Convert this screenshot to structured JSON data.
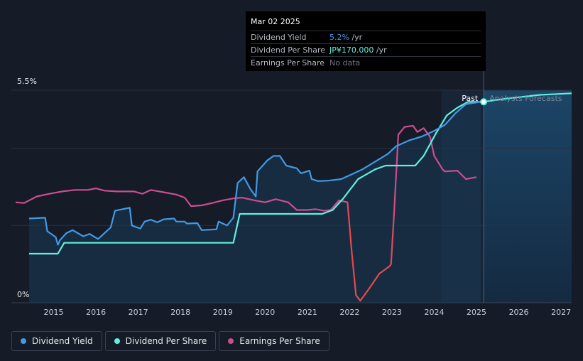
{
  "tooltip": {
    "date": "Mar 02 2025",
    "rows": [
      {
        "label": "Dividend Yield",
        "value": "5.2%",
        "suffix": " /yr"
      },
      {
        "label": "Dividend Per Share",
        "value": "JP¥170.000",
        "suffix": " /yr"
      },
      {
        "label": "Earnings Per Share",
        "value": "No data",
        "suffix": ""
      }
    ]
  },
  "legend": [
    {
      "label": "Dividend Yield",
      "color": "#3f9ae8"
    },
    {
      "label": "Dividend Per Share",
      "color": "#5ff0e0"
    },
    {
      "label": "Earnings Per Share",
      "color": "#cc4d8f"
    }
  ],
  "chart_data": {
    "type": "line",
    "y_tick_labels": [
      "5.5%",
      "0%"
    ],
    "ylim": [
      0,
      5.5
    ],
    "x_ticks": [
      "2015",
      "2016",
      "2017",
      "2018",
      "2019",
      "2020",
      "2021",
      "2022",
      "2023",
      "2024",
      "2025",
      "2026",
      "2027"
    ],
    "xlim": [
      2014.0,
      2027.25
    ],
    "region_labels": {
      "past": "Past",
      "forecast": "Analysts Forecasts"
    },
    "forecast_start": 2025.17,
    "highlight_start": 2024.17,
    "grid": true,
    "series": [
      {
        "name": "Dividend Yield",
        "color": "#3f9ae8",
        "points": [
          [
            2014.42,
            2.18
          ],
          [
            2014.8,
            2.2
          ],
          [
            2014.85,
            1.85
          ],
          [
            2015.05,
            1.7
          ],
          [
            2015.1,
            1.5
          ],
          [
            2015.15,
            1.62
          ],
          [
            2015.3,
            1.8
          ],
          [
            2015.45,
            1.88
          ],
          [
            2015.7,
            1.72
          ],
          [
            2015.85,
            1.78
          ],
          [
            2016.05,
            1.65
          ],
          [
            2016.15,
            1.75
          ],
          [
            2016.35,
            1.95
          ],
          [
            2016.45,
            2.38
          ],
          [
            2016.8,
            2.46
          ],
          [
            2016.85,
            2.0
          ],
          [
            2017.05,
            1.92
          ],
          [
            2017.15,
            2.1
          ],
          [
            2017.3,
            2.15
          ],
          [
            2017.45,
            2.08
          ],
          [
            2017.6,
            2.16
          ],
          [
            2017.85,
            2.18
          ],
          [
            2017.9,
            2.1
          ],
          [
            2018.1,
            2.1
          ],
          [
            2018.15,
            2.05
          ],
          [
            2018.4,
            2.06
          ],
          [
            2018.5,
            1.88
          ],
          [
            2018.85,
            1.9
          ],
          [
            2018.9,
            2.1
          ],
          [
            2019.1,
            2.0
          ],
          [
            2019.25,
            2.2
          ],
          [
            2019.35,
            3.1
          ],
          [
            2019.5,
            3.25
          ],
          [
            2019.65,
            2.95
          ],
          [
            2019.78,
            2.75
          ],
          [
            2019.82,
            3.4
          ],
          [
            2020.05,
            3.68
          ],
          [
            2020.2,
            3.8
          ],
          [
            2020.35,
            3.8
          ],
          [
            2020.5,
            3.55
          ],
          [
            2020.75,
            3.48
          ],
          [
            2020.85,
            3.35
          ],
          [
            2021.05,
            3.42
          ],
          [
            2021.1,
            3.2
          ],
          [
            2021.25,
            3.15
          ],
          [
            2021.5,
            3.16
          ],
          [
            2021.8,
            3.2
          ],
          [
            2022.0,
            3.3
          ],
          [
            2022.3,
            3.45
          ],
          [
            2022.6,
            3.65
          ],
          [
            2022.9,
            3.85
          ],
          [
            2023.1,
            4.05
          ],
          [
            2023.4,
            4.2
          ],
          [
            2023.7,
            4.3
          ],
          [
            2024.0,
            4.45
          ],
          [
            2024.25,
            4.6
          ],
          [
            2024.5,
            4.9
          ],
          [
            2024.75,
            5.14
          ],
          [
            2025.1,
            5.2
          ]
        ]
      },
      {
        "name": "Dividend Per Share",
        "color": "#5ff0e0",
        "points": [
          [
            2014.42,
            1.27
          ],
          [
            2015.1,
            1.27
          ],
          [
            2015.25,
            1.55
          ],
          [
            2019.25,
            1.55
          ],
          [
            2019.4,
            2.3
          ],
          [
            2021.35,
            2.3
          ],
          [
            2021.6,
            2.4
          ],
          [
            2021.85,
            2.7
          ],
          [
            2022.2,
            3.2
          ],
          [
            2022.6,
            3.45
          ],
          [
            2022.85,
            3.55
          ],
          [
            2023.55,
            3.55
          ],
          [
            2023.75,
            3.8
          ],
          [
            2024.05,
            4.4
          ],
          [
            2024.3,
            4.85
          ],
          [
            2024.55,
            5.05
          ],
          [
            2024.8,
            5.2
          ],
          [
            2025.17,
            5.2
          ],
          [
            2025.6,
            5.27
          ],
          [
            2026.0,
            5.32
          ],
          [
            2026.5,
            5.38
          ],
          [
            2027.25,
            5.42
          ]
        ]
      },
      {
        "name": "Earnings Per Share",
        "color": "#cc4d8f",
        "points": [
          [
            2014.1,
            2.6
          ],
          [
            2014.3,
            2.58
          ],
          [
            2014.6,
            2.75
          ],
          [
            2014.9,
            2.82
          ],
          [
            2015.2,
            2.88
          ],
          [
            2015.5,
            2.92
          ],
          [
            2015.8,
            2.92
          ],
          [
            2016.0,
            2.96
          ],
          [
            2016.2,
            2.9
          ],
          [
            2016.5,
            2.88
          ],
          [
            2016.9,
            2.88
          ],
          [
            2017.1,
            2.82
          ],
          [
            2017.3,
            2.92
          ],
          [
            2017.6,
            2.86
          ],
          [
            2017.9,
            2.8
          ],
          [
            2018.1,
            2.72
          ],
          [
            2018.25,
            2.5
          ],
          [
            2018.5,
            2.52
          ],
          [
            2018.75,
            2.58
          ],
          [
            2019.0,
            2.65
          ],
          [
            2019.25,
            2.7
          ],
          [
            2019.45,
            2.72
          ],
          [
            2019.75,
            2.65
          ],
          [
            2020.0,
            2.6
          ],
          [
            2020.25,
            2.68
          ],
          [
            2020.55,
            2.6
          ],
          [
            2020.75,
            2.4
          ],
          [
            2021.0,
            2.4
          ],
          [
            2021.2,
            2.42
          ],
          [
            2021.4,
            2.38
          ],
          [
            2021.55,
            2.4
          ],
          [
            2021.75,
            2.65
          ],
          [
            2021.95,
            2.6
          ],
          [
            2022.05,
            1.3
          ],
          [
            2022.15,
            0.2
          ],
          [
            2022.25,
            0.05
          ],
          [
            2022.45,
            0.35
          ],
          [
            2022.7,
            0.75
          ],
          [
            2022.95,
            0.95
          ],
          [
            2022.98,
            1.0
          ],
          [
            2023.05,
            2.3
          ],
          [
            2023.15,
            4.35
          ],
          [
            2023.3,
            4.55
          ],
          [
            2023.5,
            4.58
          ],
          [
            2023.6,
            4.42
          ],
          [
            2023.75,
            4.52
          ],
          [
            2023.9,
            4.3
          ],
          [
            2024.0,
            3.8
          ],
          [
            2024.2,
            3.45
          ],
          [
            2024.25,
            3.4
          ],
          [
            2024.55,
            3.42
          ],
          [
            2024.75,
            3.2
          ],
          [
            2025.0,
            3.25
          ]
        ]
      }
    ]
  }
}
